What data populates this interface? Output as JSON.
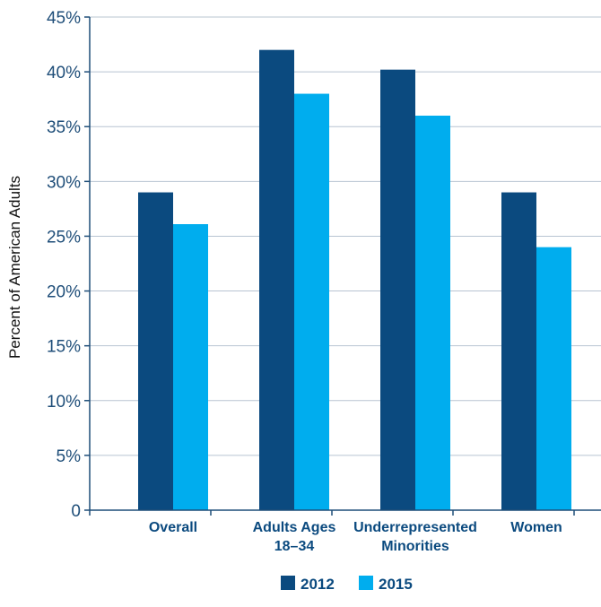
{
  "chart_data": {
    "type": "bar",
    "ylabel": "Percent of American Adults",
    "categories": [
      [
        "Overall"
      ],
      [
        "Adults Ages",
        "18–34"
      ],
      [
        "Underrepresented",
        "Minorities"
      ],
      [
        "Women"
      ]
    ],
    "series": [
      {
        "name": "2012",
        "color": "#0b4a7f",
        "values": [
          29,
          42,
          40.2,
          29
        ]
      },
      {
        "name": "2015",
        "color": "#00adee",
        "values": [
          26.1,
          38,
          36,
          24
        ]
      }
    ],
    "ylim": [
      0,
      45
    ],
    "yticks": [
      {
        "value": 0,
        "label": "0"
      },
      {
        "value": 5,
        "label": "5%"
      },
      {
        "value": 10,
        "label": "10%"
      },
      {
        "value": 15,
        "label": "15%"
      },
      {
        "value": 20,
        "label": "20%"
      },
      {
        "value": 25,
        "label": "25%"
      },
      {
        "value": 30,
        "label": "30%"
      },
      {
        "value": 35,
        "label": "35%"
      },
      {
        "value": 40,
        "label": "40%"
      },
      {
        "value": 45,
        "label": "45%"
      }
    ],
    "grid": true,
    "legend_position": "bottom-center",
    "axis_color": "#1f4e79",
    "grid_color": "#b8c4d2"
  }
}
